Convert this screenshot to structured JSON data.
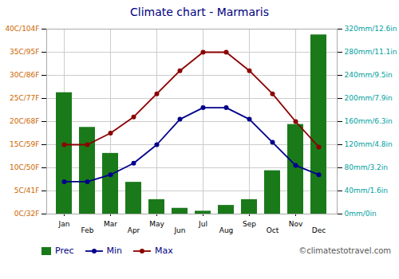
{
  "chart_data": {
    "type": "bar",
    "title": "Climate chart - Marmaris",
    "categories": [
      "Jan",
      "Feb",
      "Mar",
      "Apr",
      "May",
      "Jun",
      "Jul",
      "Aug",
      "Sep",
      "Oct",
      "Nov",
      "Dec"
    ],
    "series": [
      {
        "name": "Prec",
        "type": "bar",
        "color": "#1a7a1a",
        "axis": "y2",
        "values": [
          210,
          150,
          105,
          55,
          25,
          10,
          5,
          15,
          25,
          75,
          155,
          310
        ]
      },
      {
        "name": "Min",
        "type": "line",
        "color": "#00008B",
        "marker": "circle",
        "values": [
          7,
          7,
          8.5,
          11,
          15,
          20.5,
          23,
          23,
          20.5,
          15.5,
          10.5,
          8.5
        ]
      },
      {
        "name": "Max",
        "type": "line",
        "color": "#8B0000",
        "marker": "circle",
        "values": [
          15,
          15,
          17.5,
          21,
          26,
          31,
          35,
          35,
          31,
          26,
          20,
          14.5
        ]
      }
    ],
    "ylim": [
      0,
      40
    ],
    "yticks": [
      {
        "value": 0,
        "label": "0C/32F"
      },
      {
        "value": 5,
        "label": "5C/41F"
      },
      {
        "value": 10,
        "label": "10C/50F"
      },
      {
        "value": 15,
        "label": "15C/59F"
      },
      {
        "value": 20,
        "label": "20C/68F"
      },
      {
        "value": 25,
        "label": "25C/77F"
      },
      {
        "value": 30,
        "label": "30C/86F"
      },
      {
        "value": 35,
        "label": "35C/95F"
      },
      {
        "value": 40,
        "label": "40C/104F"
      }
    ],
    "y2lim": [
      0,
      320
    ],
    "y2ticks": [
      {
        "value": 0,
        "label": "0mm/0in"
      },
      {
        "value": 40,
        "label": "40mm/1.6in"
      },
      {
        "value": 80,
        "label": "80mm/3.2in"
      },
      {
        "value": 120,
        "label": "120mm/4.8in"
      },
      {
        "value": 160,
        "label": "160mm/6.3in"
      },
      {
        "value": 200,
        "label": "200mm/7.9in"
      },
      {
        "value": 240,
        "label": "240mm/9.5in"
      },
      {
        "value": 280,
        "label": "280mm/11.1in"
      },
      {
        "value": 320,
        "label": "320mm/12.6in"
      }
    ],
    "grid": true,
    "legend": "bottom",
    "annotation": "©climatestotravel.com"
  }
}
